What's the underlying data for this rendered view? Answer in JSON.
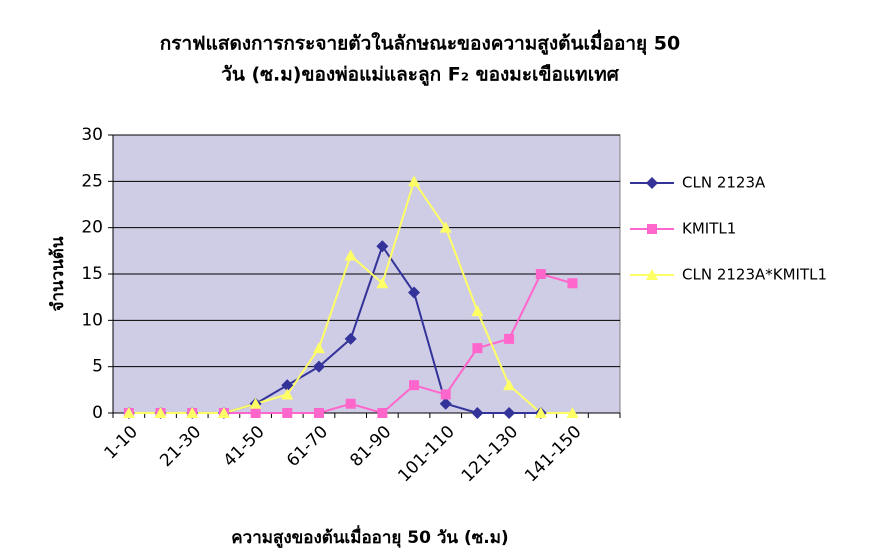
{
  "chart_data": {
    "type": "line",
    "title": [
      "กราฟแสดงการกระจายตัวในลักษณะของความสูงต้นเมื่ออายุ 50",
      "วัน (ซ.ม)ของพ่อแม่และลูก F₂ ของมะเขือแทเทศ"
    ],
    "x_label": "ความสูงของต้นเมื่ออายุ 50 วัน (ซ.ม)",
    "y_label": "จำนวนต้น",
    "categories": [
      "1-10",
      null,
      "21-30",
      null,
      "41-50",
      null,
      "61-70",
      null,
      "81-90",
      null,
      "101-110",
      null,
      "121-130",
      null,
      "141-150",
      null
    ],
    "series": [
      {
        "name": "CLN 2123A",
        "color": "#333399",
        "marker": "diamond",
        "values": [
          0,
          0,
          0,
          0,
          1,
          3,
          5,
          8,
          18,
          13,
          1,
          0,
          0,
          0,
          null,
          null
        ]
      },
      {
        "name": "KMITL1",
        "color": "#ff66cc",
        "marker": "square",
        "values": [
          0,
          0,
          0,
          0,
          0,
          0,
          0,
          1,
          0,
          3,
          2,
          7,
          8,
          15,
          14,
          null
        ]
      },
      {
        "name": "CLN 2123A*KMITL1",
        "color": "#ffff66",
        "marker": "triangle",
        "values": [
          0,
          0,
          0,
          0,
          1,
          2,
          7,
          17,
          14,
          25,
          20,
          11,
          3,
          0,
          0,
          null
        ]
      }
    ],
    "ylim": [
      0,
      30
    ],
    "yticks": [
      0,
      5,
      10,
      15,
      20,
      25,
      30
    ],
    "grid": true,
    "legend": "right",
    "plot_background": "#cfcde6"
  }
}
